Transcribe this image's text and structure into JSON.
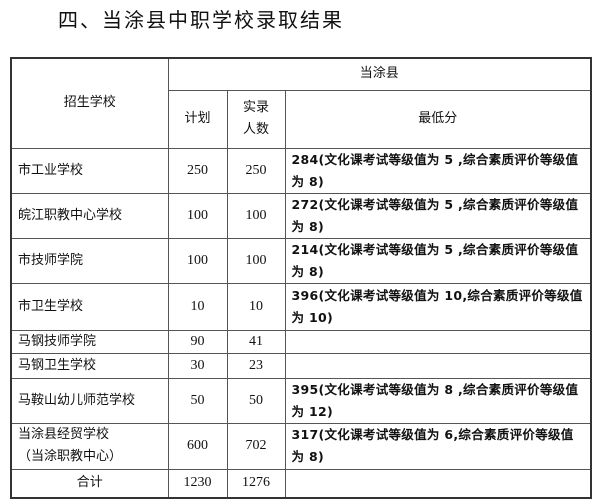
{
  "title": "四、当涂县中职学校录取结果",
  "table": {
    "header": {
      "school": "招生学校",
      "county": "当涂县",
      "plan": "计划",
      "admitted_line1": "实录",
      "admitted_line2": "人数",
      "min_score": "最低分"
    },
    "rows": [
      {
        "school": "市工业学校",
        "school2": "",
        "plan": "250",
        "admitted": "250",
        "score": "284(文化课考试等级值为 5 ,综合素质评价等级值为 8)"
      },
      {
        "school": "皖江职教中心学校",
        "school2": "",
        "plan": "100",
        "admitted": "100",
        "score": "272(文化课考试等级值为 5 ,综合素质评价等级值为 8)"
      },
      {
        "school": "市技师学院",
        "school2": "",
        "plan": "100",
        "admitted": "100",
        "score": "214(文化课考试等级值为 5 ,综合素质评价等级值为 8)"
      },
      {
        "school": "市卫生学校",
        "school2": "",
        "plan": "10",
        "admitted": "10",
        "score": "396(文化课考试等级值为 10,综合素质评价等级值为 10)"
      },
      {
        "school": "马钢技师学院",
        "school2": "",
        "plan": "90",
        "admitted": "41",
        "score": ""
      },
      {
        "school": "马钢卫生学校",
        "school2": "",
        "plan": "30",
        "admitted": "23",
        "score": ""
      },
      {
        "school": "马鞍山幼儿师范学校",
        "school2": "",
        "plan": "50",
        "admitted": "50",
        "score": "395(文化课考试等级值为 8 ,综合素质评价等级值为 12)"
      },
      {
        "school": "当涂县经贸学校",
        "school2": "（当涂职教中心）",
        "plan": "600",
        "admitted": "702",
        "score": "317(文化课考试等级值为 6,综合素质评价等级值为 8)"
      }
    ],
    "total": {
      "label": "合计",
      "plan": "1230",
      "admitted": "1276",
      "score": ""
    }
  }
}
